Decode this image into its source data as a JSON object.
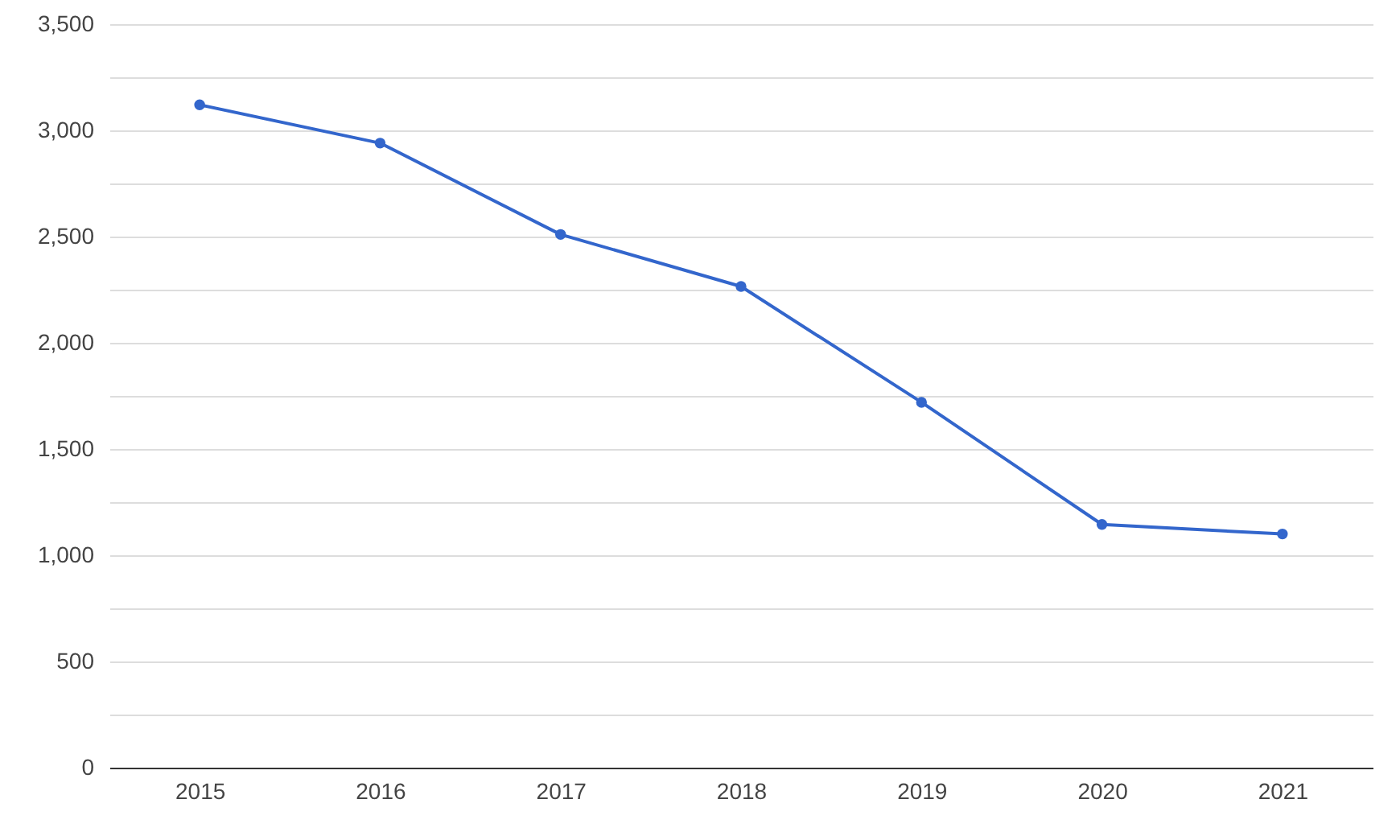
{
  "chart_data": {
    "type": "line",
    "categories": [
      "2015",
      "2016",
      "2017",
      "2018",
      "2019",
      "2020",
      "2021"
    ],
    "series": [
      {
        "color": "#3366cc",
        "values": [
          3120,
          2940,
          2510,
          2265,
          1720,
          1145,
          1100
        ]
      }
    ],
    "ylim": [
      0,
      3500
    ],
    "yticks": [
      0,
      {
        "value": 250,
        "label": null
      },
      500,
      {
        "value": 750,
        "label": null
      },
      {
        "value": 1000,
        "label": "1,000"
      },
      {
        "value": 1250,
        "label": null
      },
      {
        "value": 1500,
        "label": "1,500"
      },
      {
        "value": 1750,
        "label": null
      },
      {
        "value": 2000,
        "label": "2,000"
      },
      {
        "value": 2250,
        "label": null
      },
      {
        "value": 2500,
        "label": "2,500"
      },
      {
        "value": 2750,
        "label": null
      },
      {
        "value": 3000,
        "label": "3,000"
      },
      {
        "value": 3250,
        "label": null
      },
      {
        "value": 3500,
        "label": "3,500"
      }
    ],
    "grid": true,
    "marker": "circle",
    "line_style": "solid"
  }
}
